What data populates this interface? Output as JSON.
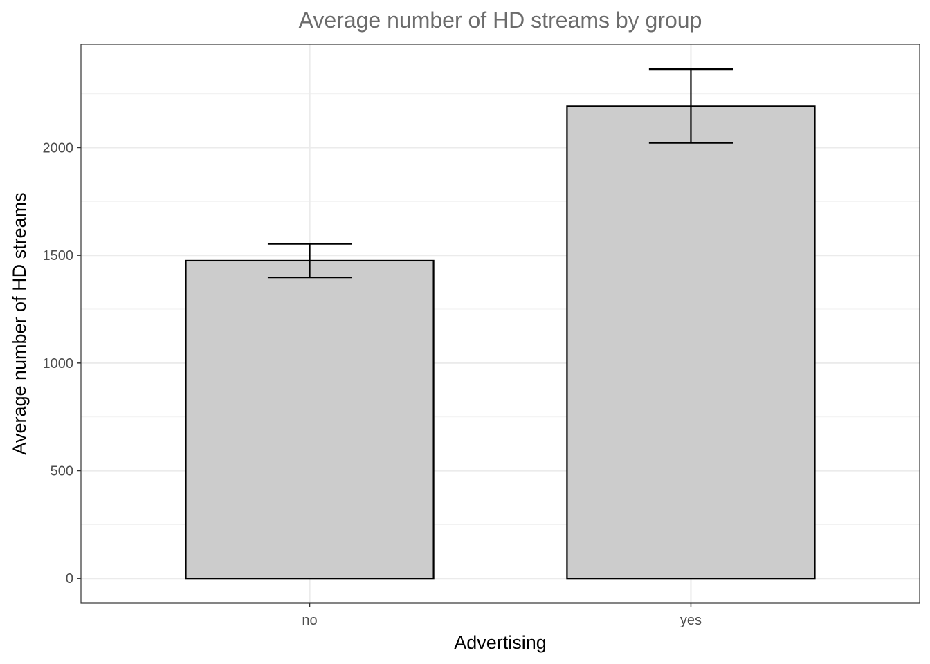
{
  "chart_data": {
    "type": "bar",
    "title": "Average number of HD streams by group",
    "xlabel": "Advertising",
    "ylabel": "Average number of HD streams",
    "categories": [
      "no",
      "yes"
    ],
    "values": [
      1475,
      2193
    ],
    "error_bars": [
      {
        "low": 1397,
        "high": 1553
      },
      {
        "low": 2022,
        "high": 2364
      }
    ],
    "ylim": [
      -115,
      2480
    ],
    "yticks": [
      0,
      500,
      1000,
      1500,
      2000
    ],
    "grid": true,
    "legend": "none",
    "colors": {
      "bar_fill": "#cccccc",
      "bar_stroke": "#000000",
      "grid_major": "#ebebeb",
      "grid_minor": "#f2f2f2",
      "panel_border": "#333333",
      "title": "#6b6b6b"
    }
  }
}
